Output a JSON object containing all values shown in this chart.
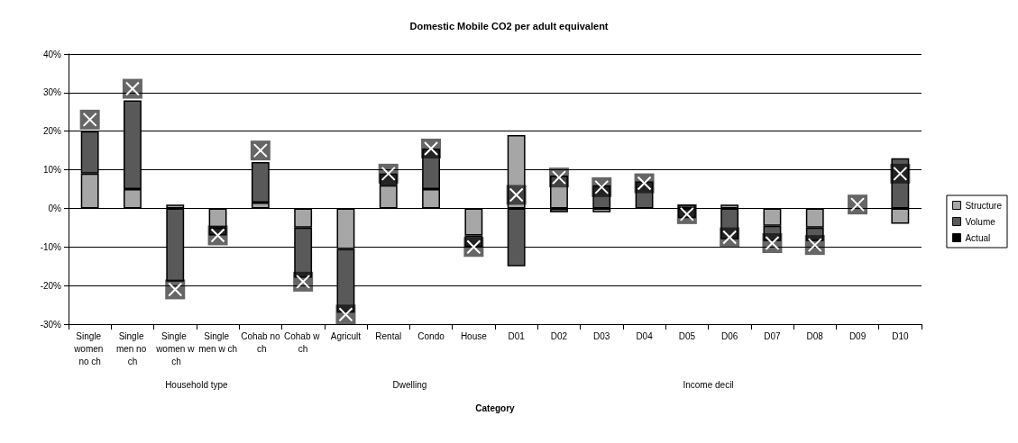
{
  "chart_data": {
    "type": "bar",
    "title": "Domestic Mobile CO2 per adult equivalent",
    "xlabel": "Category",
    "categories": [
      "Single women no ch",
      "Single men no ch",
      "Single women w ch",
      "Single men w ch",
      "Cohab no ch",
      "Cohab w ch",
      "Agricult",
      "Rental",
      "Condo",
      "House",
      "D01",
      "D02",
      "D03",
      "D04",
      "D05",
      "D06",
      "D07",
      "D08",
      "D09",
      "D10"
    ],
    "stacked": true,
    "series": [
      {
        "name": "Structure",
        "color": "#a6a6a6",
        "values": [
          9,
          5,
          1,
          -5,
          1.5,
          -5,
          -10.5,
          6,
          5,
          -7,
          19,
          8.5,
          -1,
          null,
          1,
          1,
          -4.5,
          -5,
          null,
          -4
        ]
      },
      {
        "name": "Volume",
        "color": "#595959",
        "values": [
          11,
          23,
          -19,
          -2,
          10.5,
          -13,
          -16.5,
          3,
          10.5,
          -3,
          -15,
          -1,
          6,
          7,
          -2.5,
          -8,
          -4,
          -3.5,
          null,
          13
        ]
      },
      {
        "name": "Actual",
        "type": "scatter",
        "color": "#000000",
        "values": [
          23,
          31,
          -21,
          -7,
          15,
          -19,
          -27.5,
          9,
          15.5,
          -10,
          3.5,
          8,
          5.5,
          6.5,
          -1.5,
          -7.5,
          -9,
          -9.5,
          1,
          9
        ]
      }
    ],
    "ylim": [
      -30,
      40
    ],
    "yticks": [
      {
        "value": -30,
        "label": "-30%"
      },
      {
        "value": -20,
        "label": "-20%"
      },
      {
        "value": -10,
        "label": "-10%"
      },
      {
        "value": 0,
        "label": "0%"
      },
      {
        "value": 10,
        "label": "10%"
      },
      {
        "value": 20,
        "label": "20%"
      },
      {
        "value": 30,
        "label": "30%"
      },
      {
        "value": 40,
        "label": "40%"
      }
    ],
    "grid": "y",
    "legend": "right",
    "marker": "square",
    "annotations": [
      "Household type",
      "Dwelling",
      "Income decil"
    ]
  }
}
